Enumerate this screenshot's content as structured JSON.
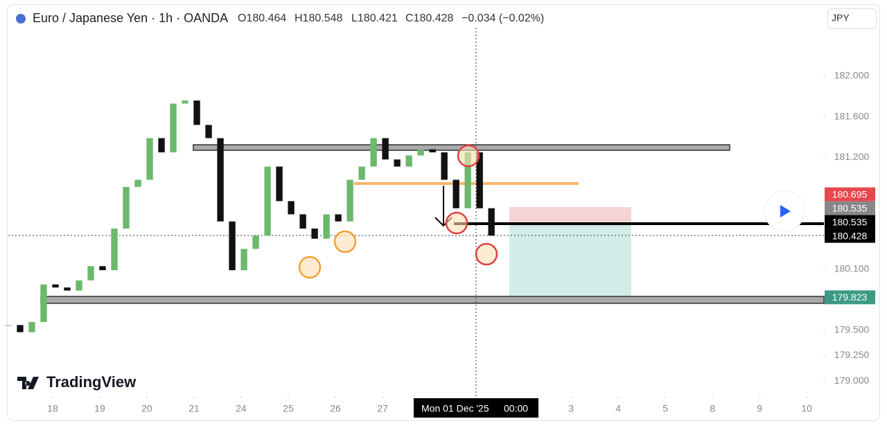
{
  "chart_data": {
    "type": "candlestick",
    "title": "Euro / Japanese Yen · 1h · OANDA",
    "ohlc": [
      "O180.464",
      "H180.548",
      "L180.421",
      "C180.428"
    ],
    "change": "−0.034 (−0.02%)",
    "currency": "JPY",
    "logo": "TradingView",
    "crosshair_date": "Mon 01 Dec '25",
    "crosshair_time": "00:00",
    "up_color": "#6cb86c",
    "down_color": "#111111",
    "x": [
      -0.94,
      -0.69,
      -0.44,
      -0.19,
      0.06,
      0.31,
      0.56,
      0.81,
      1.06,
      1.31,
      1.56,
      1.81,
      2.06,
      2.31,
      2.56,
      2.81,
      3.06,
      3.31,
      3.56,
      3.81,
      4.06,
      4.31,
      4.56,
      4.81,
      5.06,
      5.31,
      5.56,
      5.81,
      6.06,
      6.31,
      6.56,
      6.81,
      7.06,
      7.31,
      7.56,
      7.81,
      8.06,
      8.31,
      8.56,
      8.81,
      9.06,
      9.31
    ],
    "values": [
      179.55,
      179.48,
      179.58,
      179.95,
      179.92,
      179.89,
      179.99,
      180.13,
      180.09,
      180.5,
      180.91,
      180.98,
      181.39,
      181.25,
      181.73,
      181.76,
      181.52,
      181.39,
      180.57,
      180.09,
      180.3,
      180.43,
      181.11,
      180.77,
      180.64,
      180.5,
      180.4,
      180.64,
      180.57,
      180.98,
      181.11,
      181.39,
      181.18,
      181.11,
      181.22,
      181.28,
      181.25,
      180.98,
      180.7,
      181.25,
      180.7,
      180.43
    ],
    "xlim": [
      -0.94,
      16.35
    ],
    "ylim": [
      178.864,
      182.477
    ],
    "xticks": [
      {
        "value": 0,
        "label": "18"
      },
      {
        "value": 1,
        "label": "19"
      },
      {
        "value": 2,
        "label": "20"
      },
      {
        "value": 3,
        "label": "21"
      },
      {
        "value": 4,
        "label": "24"
      },
      {
        "value": 5,
        "label": "25"
      },
      {
        "value": 6,
        "label": "26"
      },
      {
        "value": 7,
        "label": "27"
      },
      {
        "value": 11,
        "label": "3"
      },
      {
        "value": 12,
        "label": "4"
      },
      {
        "value": 13,
        "label": "5"
      },
      {
        "value": 14,
        "label": "8"
      },
      {
        "value": 15,
        "label": "9"
      },
      {
        "value": 16,
        "label": "10"
      }
    ],
    "yticks": [
      {
        "value": 182,
        "label": "182.000"
      },
      {
        "value": 181.6,
        "label": "181.600"
      },
      {
        "value": 181.2,
        "label": "181.200"
      },
      {
        "value": 180.1,
        "label": "180.100"
      },
      {
        "value": 179.5,
        "label": "179.500"
      },
      {
        "value": 179.25,
        "label": "179.250"
      },
      {
        "value": 179,
        "label": "179.000"
      }
    ],
    "price_labels": [
      {
        "value": 180.695,
        "label": "180.695",
        "color": "#e5484d"
      },
      {
        "value": 180.535,
        "label": "180.535",
        "color": "#888888"
      },
      {
        "value": 180.535,
        "label": "180.535",
        "color": "#000000"
      },
      {
        "value": 180.428,
        "label": "180.428",
        "color": "#000000"
      },
      {
        "value": 179.823,
        "label": "179.823",
        "color": "#3d9a84"
      }
    ],
    "grid": false
  }
}
